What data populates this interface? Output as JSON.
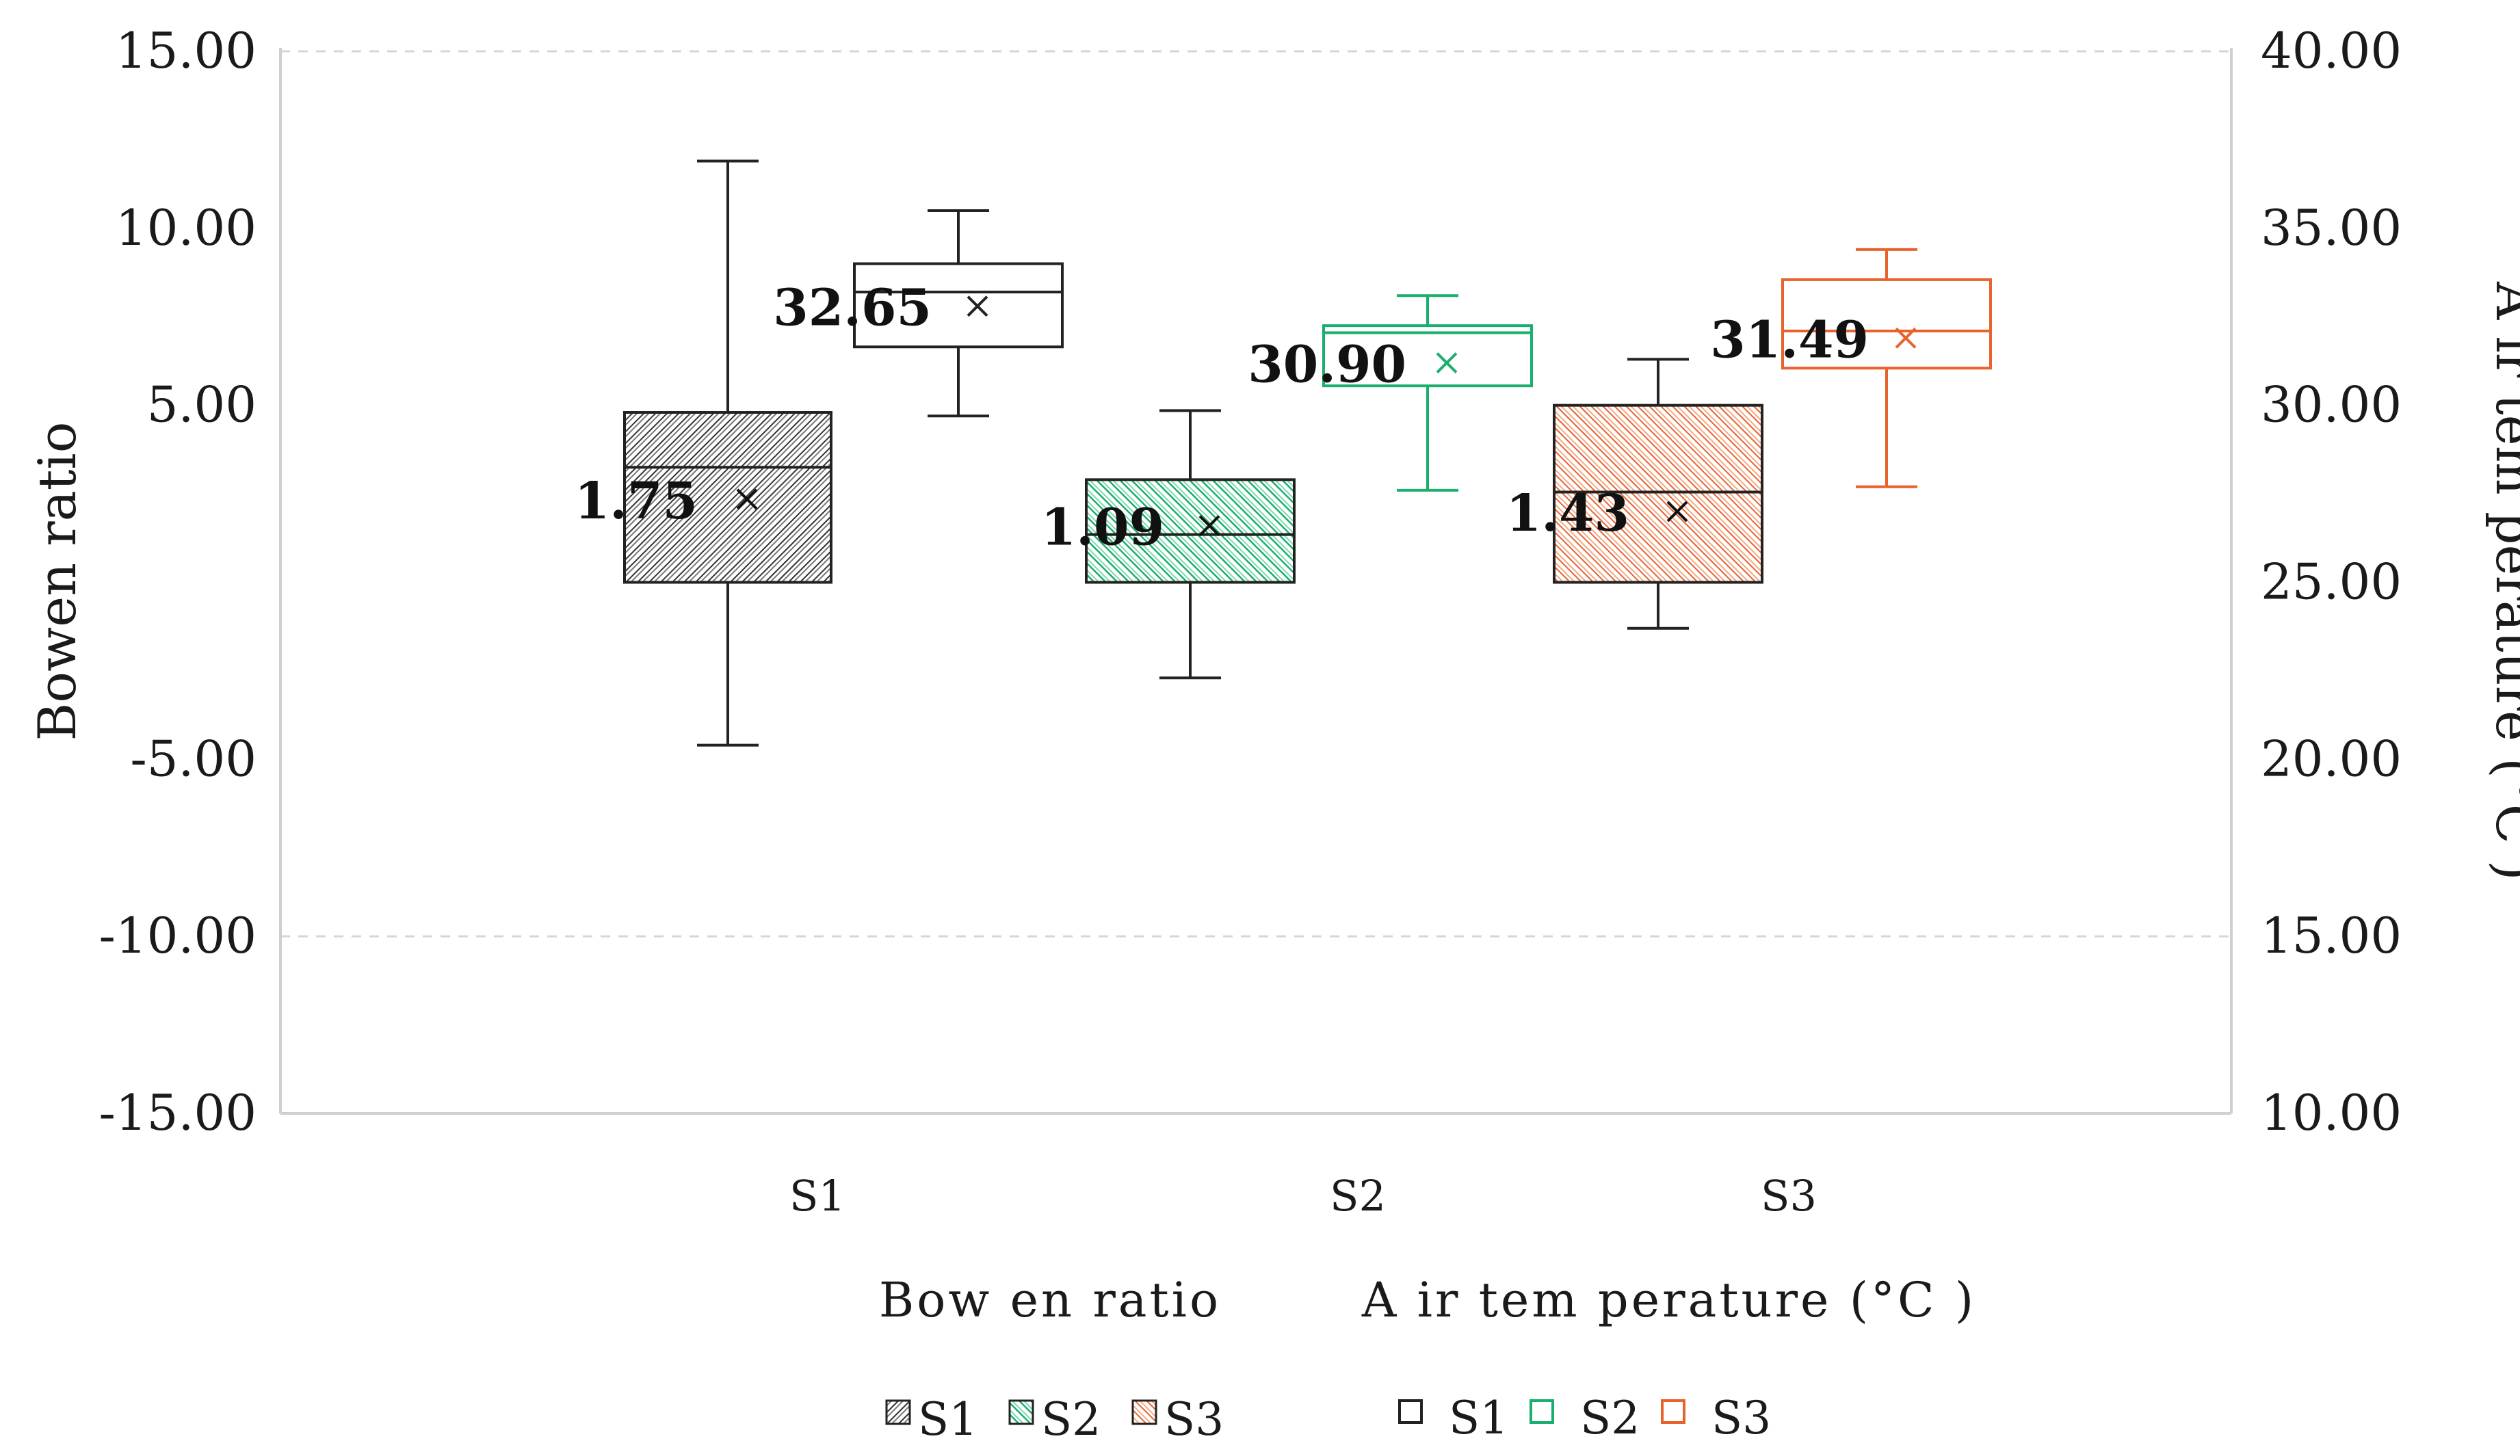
{
  "chart_data": {
    "type": "box",
    "categories": [
      "S1",
      "S2",
      "S3"
    ],
    "left_axis": {
      "label": "Bowen ratio",
      "ticks": [
        "15.00",
        "10.00",
        "5.00",
        "",
        "-5.00",
        "-10.00",
        "-15.00"
      ],
      "ylim": [
        -15,
        15
      ],
      "tick_values": [
        15,
        10,
        5,
        0,
        -5,
        -10,
        -15
      ]
    },
    "right_axis": {
      "label": "A ir tem perature (°C )",
      "ticks": [
        "40.00",
        "35.00",
        "30.00",
        "25.00",
        "20.00",
        "15.00",
        "10.00"
      ],
      "ylim": [
        10,
        40
      ],
      "tick_values": [
        40,
        35,
        30,
        25,
        20,
        15,
        10
      ]
    },
    "grid": "dashed horizontal",
    "colors": {
      "S1": "#222222",
      "S2": "#1aaf6c",
      "S3": "#e8622c",
      "axis": "#cfcfcf"
    },
    "groups": [
      {
        "name": "Bowen ratio",
        "axis": "left",
        "fill": "hatched",
        "series": [
          {
            "name": "S1",
            "category": "S1",
            "min": -4.6,
            "q1": 0,
            "median": 3.25,
            "q3": 4.8,
            "max": 11.9,
            "mean": 2.35,
            "label": "1.75"
          },
          {
            "name": "S2",
            "category": "S2",
            "min": -2.7,
            "q1": 0,
            "median": 1.35,
            "q3": 2.9,
            "max": 4.85,
            "mean": 1.6,
            "label": "1.09"
          },
          {
            "name": "S3",
            "category": "S3",
            "min": -1.3,
            "q1": 0,
            "median": 2.55,
            "q3": 5.0,
            "max": 6.3,
            "mean": 2.0,
            "label": "1.43"
          }
        ]
      },
      {
        "name": "A ir tem perature (°C )",
        "axis": "right",
        "fill": "none",
        "series": [
          {
            "name": "S1",
            "category": "S1",
            "min": 29.7,
            "q1": 31.65,
            "median": 33.2,
            "q3": 34.0,
            "max": 35.5,
            "mean": 32.8,
            "label": "32.65"
          },
          {
            "name": "S2",
            "category": "S2",
            "min": 27.6,
            "q1": 30.55,
            "median": 32.05,
            "q3": 32.25,
            "max": 33.1,
            "mean": 31.2,
            "label": "30.90"
          },
          {
            "name": "S3",
            "category": "S3",
            "min": 27.7,
            "q1": 31.05,
            "median": 32.1,
            "q3": 33.55,
            "max": 34.4,
            "mean": 31.9,
            "label": "31.49"
          }
        ]
      }
    ],
    "legend": {
      "position": "bottom",
      "groups": [
        {
          "title": "Bow en ratio",
          "items": [
            "S1",
            "S2",
            "S3"
          ]
        },
        {
          "title": "A ir tem perature (°C )",
          "items": [
            "S1",
            "S2",
            "S3"
          ]
        }
      ]
    }
  }
}
